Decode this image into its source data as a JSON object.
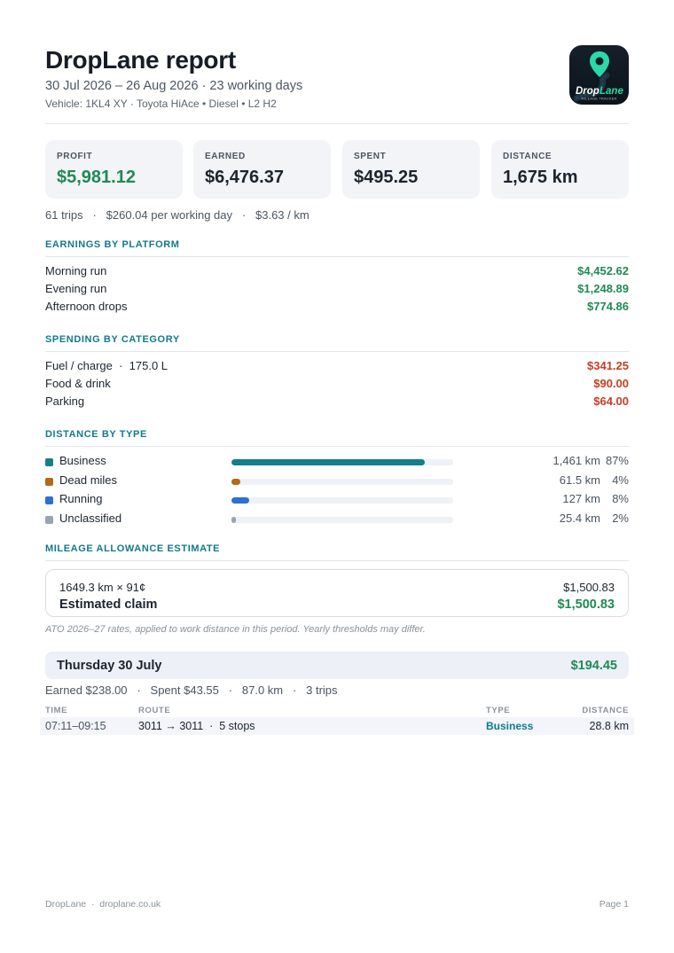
{
  "header": {
    "title": "DropLane report",
    "period": "30 Jul 2026 – 26 Aug 2026 · 23 working days",
    "vehicle": "Vehicle: 1KL4 XY · Toyota HiAce • Diesel • L2 H2"
  },
  "logo": {
    "line1_a": "Drop",
    "line1_b": "Lane",
    "line2": "MILEAGE TRACKER",
    "accent": "#2bd9a8"
  },
  "cards": [
    {
      "label": "PROFIT",
      "value": "$5,981.12"
    },
    {
      "label": "EARNED",
      "value": "$6,476.37"
    },
    {
      "label": "SPENT",
      "value": "$495.25"
    },
    {
      "label": "DISTANCE",
      "value": "1,675 km"
    }
  ],
  "summary": "61 trips   ·   $260.04 per working day   ·   $3.63 / km",
  "earnings": {
    "heading": "EARNINGS BY PLATFORM",
    "rows": [
      {
        "label": "Morning run",
        "value": "$4,452.62"
      },
      {
        "label": "Evening run",
        "value": "$1,248.89"
      },
      {
        "label": "Afternoon drops",
        "value": "$774.86"
      }
    ]
  },
  "spending": {
    "heading": "SPENDING BY CATEGORY",
    "rows": [
      {
        "label": "Fuel / charge  ·  175.0 L",
        "value": "$341.25"
      },
      {
        "label": "Food & drink",
        "value": "$90.00"
      },
      {
        "label": "Parking",
        "value": "$64.00"
      }
    ]
  },
  "distance": {
    "heading": "DISTANCE BY TYPE",
    "rows": [
      {
        "label": "Business",
        "km": "1,461 km",
        "pct": "87%",
        "fraction": 0.87,
        "color": "#157e8a"
      },
      {
        "label": "Dead miles",
        "km": "61.5 km",
        "pct": "4%",
        "fraction": 0.04,
        "color": "#b26a14"
      },
      {
        "label": "Running",
        "km": "127 km",
        "pct": "8%",
        "fraction": 0.08,
        "color": "#2f6fd0"
      },
      {
        "label": "Unclassified",
        "km": "25.4 km",
        "pct": "2%",
        "fraction": 0.02,
        "color": "#9aa3b0"
      }
    ]
  },
  "mileage": {
    "heading": "MILEAGE ALLOWANCE ESTIMATE",
    "calc": "1649.3 km × 91¢",
    "calc_value": "$1,500.83",
    "claim_label": "Estimated claim",
    "claim_value": "$1,500.83",
    "note": "ATO 2026–27 rates, applied to work distance in this period. Yearly thresholds may differ."
  },
  "day": {
    "title": "Thursday 30 July",
    "total": "$194.45",
    "summary": "Earned $238.00   ·   Spent $43.55   ·   87.0 km   ·   3 trips",
    "headers": {
      "time": "TIME",
      "route": "ROUTE",
      "type": "TYPE",
      "distance": "DISTANCE"
    },
    "trips": [
      {
        "time": "07:11–09:15",
        "route": "3011 → 3011  ·  5 stops",
        "type": "Business",
        "distance": "28.8 km"
      }
    ]
  },
  "footer": {
    "left": "DropLane  ·  droplane.co.uk",
    "right": "Page 1"
  }
}
